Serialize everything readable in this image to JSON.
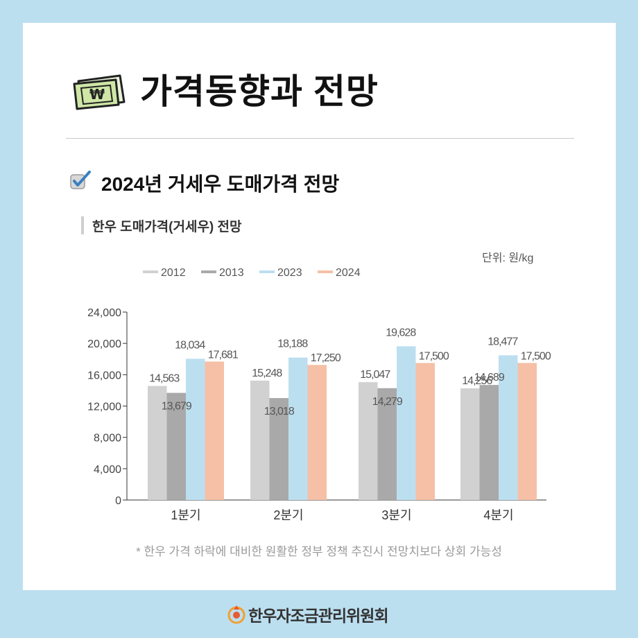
{
  "header": {
    "title": "가격동향과 전망",
    "icon": "money-bill-won-icon"
  },
  "section": {
    "title": "2024년 거세우 도매가격 전망",
    "icon": "checkbox-checked-icon"
  },
  "chart_title": "한우 도매가격(거세우) 전망",
  "unit_label": "단위: 원/kg",
  "footnote": "* 한우 가격 하락에 대비한 원활한 정부 정책 추진시 전망치보다 상회 가능성",
  "org": {
    "name": "한우자조금관리위원회",
    "logo": "hanwoo-logo-icon"
  },
  "colors": {
    "2012": "#d1d1d1",
    "2013": "#a9a9a9",
    "2023": "#bcdff0",
    "2024": "#f5c0a6",
    "background": "#bcdff0"
  },
  "chart_data": {
    "type": "bar",
    "title": "한우 도매가격(거세우) 전망",
    "xlabel": "",
    "ylabel": "",
    "categories": [
      "1분기",
      "2분기",
      "3분기",
      "4분기"
    ],
    "series": [
      {
        "name": "2012",
        "values": [
          14563,
          15248,
          15047,
          14256
        ],
        "labels": [
          "14,563",
          "15,248",
          "15,047",
          "14,256"
        ]
      },
      {
        "name": "2013",
        "values": [
          13679,
          13018,
          14279,
          14689
        ],
        "labels": [
          "13,679",
          "13,018",
          "14,279",
          "14,689"
        ]
      },
      {
        "name": "2023",
        "values": [
          18034,
          18188,
          19628,
          18477
        ],
        "labels": [
          "18,034",
          "18,188",
          "19,628",
          "18,477"
        ]
      },
      {
        "name": "2024",
        "values": [
          17681,
          17250,
          17500,
          17500
        ],
        "labels": [
          "17,681",
          "17,250",
          "17,500",
          "17,500"
        ]
      }
    ],
    "ylim": [
      0,
      24000
    ],
    "yticks": [
      0,
      4000,
      8000,
      12000,
      16000,
      20000,
      24000
    ],
    "ytick_labels": [
      "0",
      "4,000",
      "8,000",
      "12,000",
      "16,000",
      "20,000",
      "24,000"
    ],
    "legend": "top-left",
    "grid": false
  }
}
